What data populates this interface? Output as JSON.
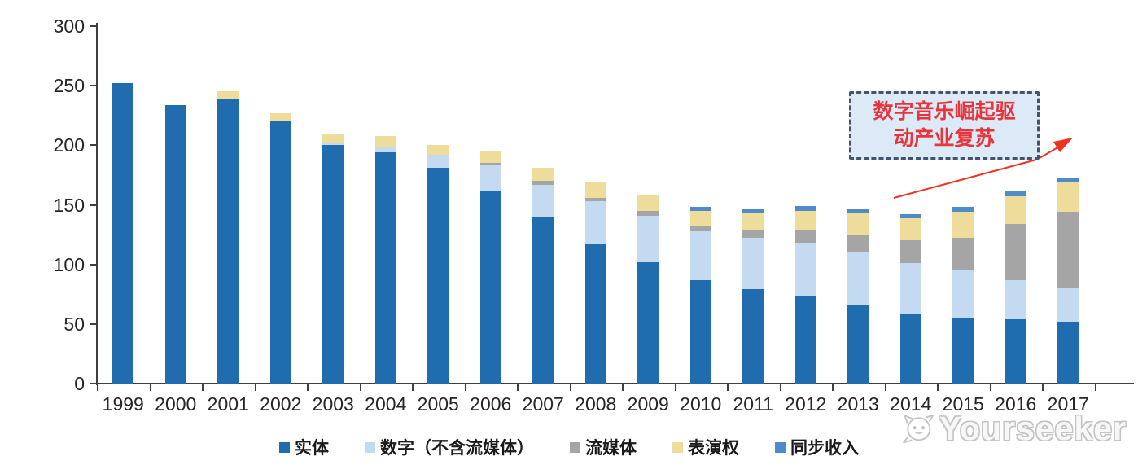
{
  "chart_data": {
    "type": "bar",
    "stacked": true,
    "title": "",
    "xlabel": "",
    "ylabel": "",
    "ylim": [
      0,
      300
    ],
    "yticks": [
      0,
      50,
      100,
      150,
      200,
      250,
      300
    ],
    "grid": false,
    "legend_position": "bottom",
    "categories": [
      "1999",
      "2000",
      "2001",
      "2002",
      "2003",
      "2004",
      "2005",
      "2006",
      "2007",
      "2008",
      "2009",
      "2010",
      "2011",
      "2012",
      "2013",
      "2014",
      "2015",
      "2016",
      "2017"
    ],
    "series": [
      {
        "name": "实体",
        "color": "#1F6DAE",
        "values": [
          252,
          234,
          239,
          220,
          200,
          194,
          181,
          162,
          140,
          117,
          102,
          87,
          79,
          74,
          66,
          59,
          55,
          54,
          52
        ]
      },
      {
        "name": "数字（不含流媒体）",
        "color": "#C3DAF0",
        "values": [
          0,
          0,
          0,
          0,
          2,
          4,
          11,
          21,
          27,
          36,
          39,
          41,
          43,
          44,
          44,
          42,
          40,
          33,
          28
        ]
      },
      {
        "name": "流媒体",
        "color": "#A5A5A5",
        "values": [
          0,
          0,
          0,
          0,
          0,
          0,
          0,
          2,
          3,
          3,
          4,
          4,
          7,
          11,
          15,
          19,
          27,
          47,
          64
        ]
      },
      {
        "name": "表演权",
        "color": "#EEDC9A",
        "values": [
          0,
          0,
          6,
          7,
          8,
          10,
          8,
          10,
          11,
          13,
          13,
          13,
          14,
          16,
          18,
          19,
          22,
          23,
          25
        ]
      },
      {
        "name": "同步收入",
        "color": "#4E8BC8",
        "values": [
          0,
          0,
          0,
          0,
          0,
          0,
          0,
          0,
          0,
          0,
          0,
          3,
          3,
          4,
          3,
          3,
          4,
          4,
          4
        ]
      }
    ]
  },
  "annotation": {
    "line1": "数字音乐崛起驱",
    "line2": "动产业复苏",
    "text_color": "#E8353B",
    "box_fill": "#DCE9F7",
    "box_border_color": "#44546A",
    "arrow_color": "#EC3323"
  },
  "watermark": {
    "text": "Yourseeker",
    "color": "#C4C4C4",
    "logo_icon": "cat-face-icon"
  },
  "axis_color": "#3F3F3F"
}
